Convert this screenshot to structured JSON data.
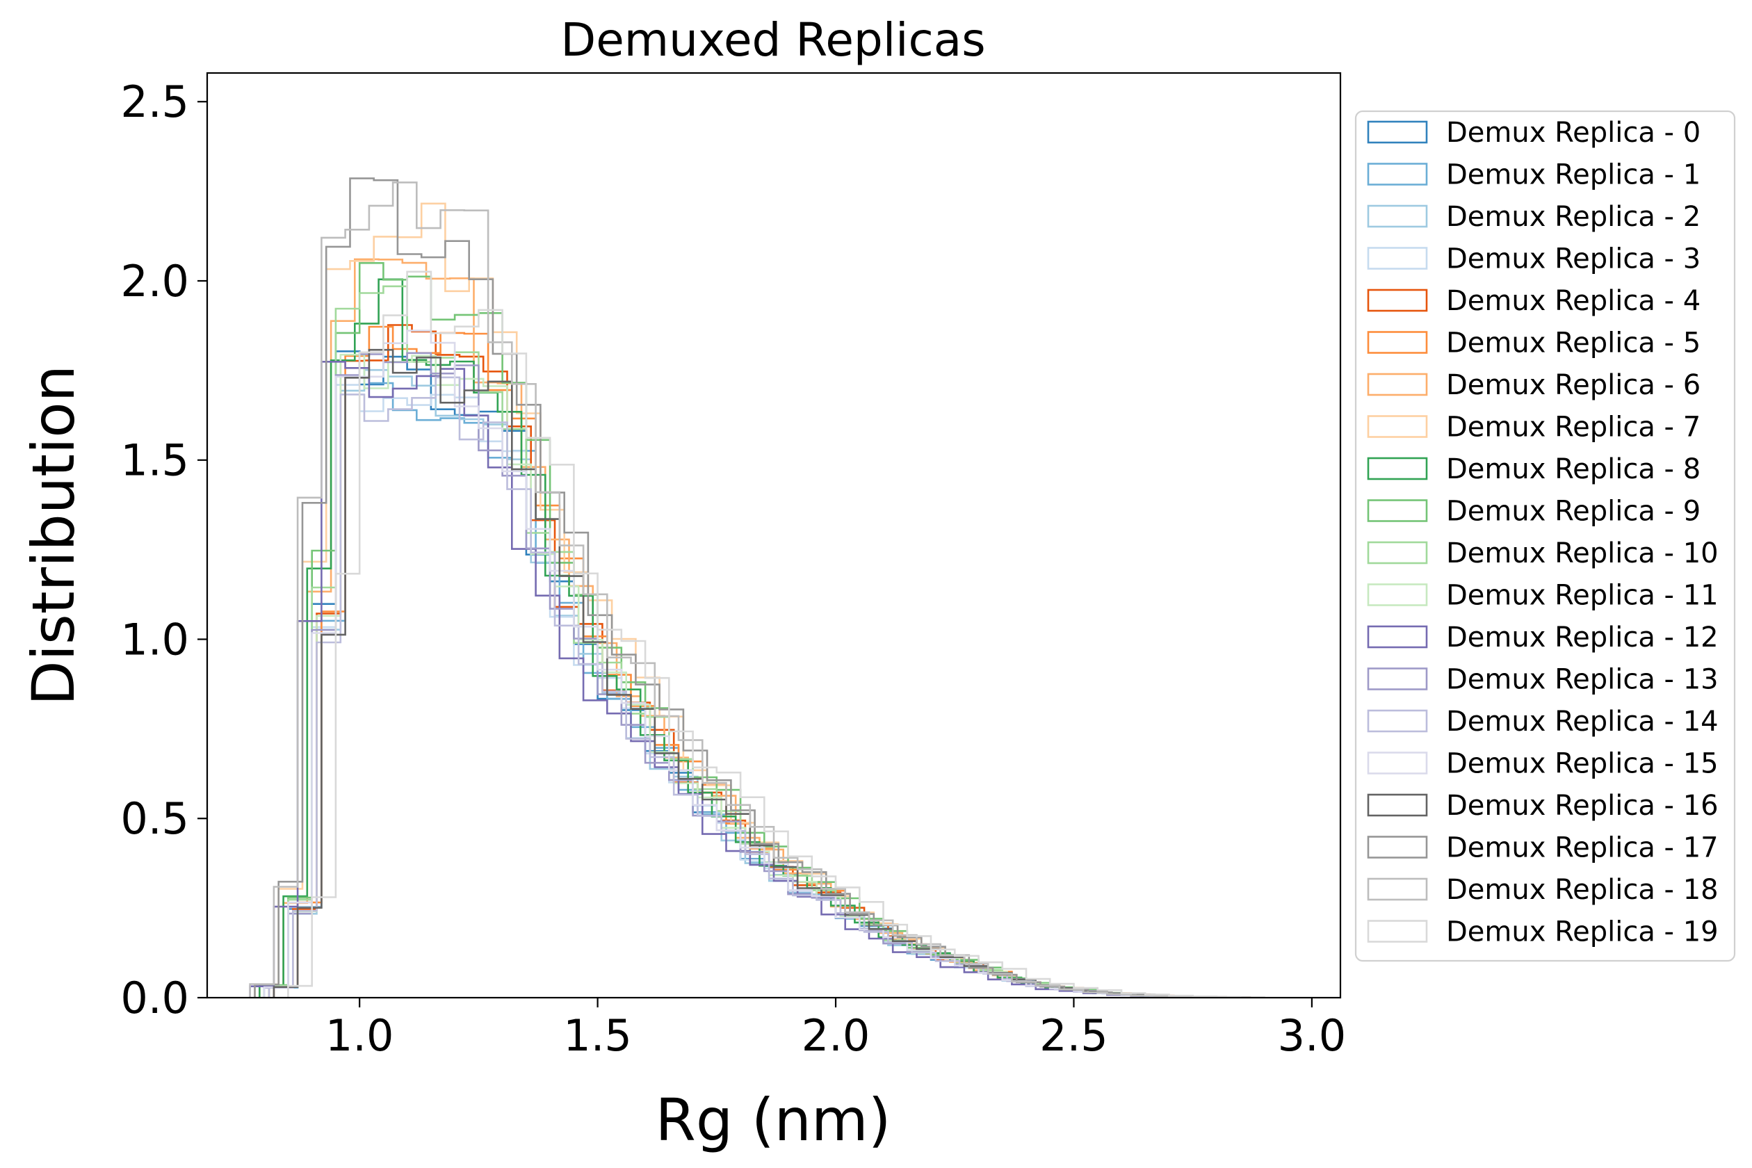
{
  "chart_data": {
    "type": "histogram",
    "title": "Demuxed Replicas",
    "xlabel": "Rg (nm)",
    "ylabel": "Distribution",
    "xlim": [
      0.68,
      3.06
    ],
    "ylim": [
      0,
      2.58
    ],
    "xticks": [
      1.0,
      1.5,
      2.0,
      2.5,
      3.0
    ],
    "xtick_labels": [
      "1.0",
      "1.5",
      "2.0",
      "2.5",
      "3.0"
    ],
    "yticks": [
      0.0,
      0.5,
      1.0,
      1.5,
      2.0,
      2.5
    ],
    "ytick_labels": [
      "0.0",
      "0.5",
      "1.0",
      "1.5",
      "2.0",
      "2.5"
    ],
    "histtype": "step",
    "grid": false,
    "legend_position": "outside-right",
    "bin_start": 0.8,
    "bin_width": 0.05,
    "reference_density": [
      0.03,
      0.25,
      1.05,
      1.72,
      1.76,
      1.78,
      1.74,
      1.72,
      1.7,
      1.62,
      1.5,
      1.3,
      1.12,
      0.98,
      0.86,
      0.78,
      0.7,
      0.62,
      0.54,
      0.48,
      0.41,
      0.36,
      0.31,
      0.27,
      0.23,
      0.19,
      0.16,
      0.13,
      0.11,
      0.09,
      0.07,
      0.05,
      0.035,
      0.025,
      0.018,
      0.012,
      0.008,
      0.005,
      0.003,
      0.002,
      0.001
    ],
    "series": [
      {
        "name": "Demux Replica - 0",
        "color": "#3182bd",
        "shift": 0.0,
        "scale": 1.0
      },
      {
        "name": "Demux Replica - 1",
        "color": "#6baed6",
        "shift": 0.02,
        "scale": 0.97
      },
      {
        "name": "Demux Replica - 2",
        "color": "#9ecae1",
        "shift": 0.01,
        "scale": 0.96
      },
      {
        "name": "Demux Replica - 3",
        "color": "#c6dbef",
        "shift": 0.0,
        "scale": 0.98
      },
      {
        "name": "Demux Replica - 4",
        "color": "#e6550d",
        "shift": 0.01,
        "scale": 1.03
      },
      {
        "name": "Demux Replica - 5",
        "color": "#fd8d3c",
        "shift": 0.02,
        "scale": 1.05
      },
      {
        "name": "Demux Replica - 6",
        "color": "#fdae6b",
        "shift": -0.01,
        "scale": 1.12
      },
      {
        "name": "Demux Replica - 7",
        "color": "#fdd0a2",
        "shift": -0.02,
        "scale": 1.22
      },
      {
        "name": "Demux Replica - 8",
        "color": "#31a354",
        "shift": -0.01,
        "scale": 1.08
      },
      {
        "name": "Demux Replica - 9",
        "color": "#74c476",
        "shift": 0.0,
        "scale": 1.14
      },
      {
        "name": "Demux Replica - 10",
        "color": "#a1d99b",
        "shift": 0.0,
        "scale": 1.06
      },
      {
        "name": "Demux Replica - 11",
        "color": "#c7e9c0",
        "shift": 0.01,
        "scale": 1.0
      },
      {
        "name": "Demux Replica - 12",
        "color": "#756bb1",
        "shift": -0.03,
        "scale": 1.0
      },
      {
        "name": "Demux Replica - 13",
        "color": "#9e9ac8",
        "shift": 0.0,
        "scale": 0.99
      },
      {
        "name": "Demux Replica - 14",
        "color": "#bcbddc",
        "shift": 0.01,
        "scale": 0.97
      },
      {
        "name": "Demux Replica - 15",
        "color": "#dadaeb",
        "shift": 0.0,
        "scale": 1.01
      },
      {
        "name": "Demux Replica - 16",
        "color": "#636363",
        "shift": 0.02,
        "scale": 1.02
      },
      {
        "name": "Demux Replica - 17",
        "color": "#969696",
        "shift": -0.02,
        "scale": 1.25
      },
      {
        "name": "Demux Replica - 18",
        "color": "#bdbdbd",
        "shift": -0.03,
        "scale": 1.28
      },
      {
        "name": "Demux Replica - 19",
        "color": "#d9d9d9",
        "shift": 0.05,
        "scale": 1.1
      }
    ]
  }
}
